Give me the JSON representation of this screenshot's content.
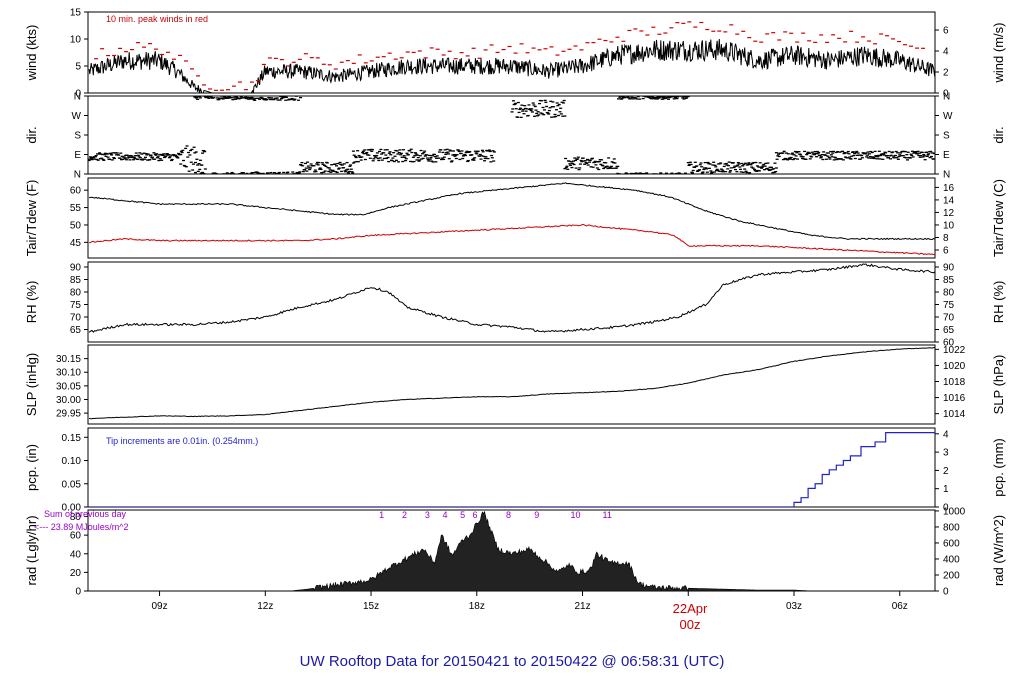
{
  "footer": {
    "title": "UW Rooftop Data for 20150421  to  20150422 @ 06:58:31  (UTC)"
  },
  "colors": {
    "red": "#cc0000",
    "blue": "#2222cc",
    "purple": "#9900cc",
    "black": "#000000",
    "title_blue": "#1a1aa6"
  },
  "x_axis": {
    "range_hours": [
      6.97,
      31.0
    ],
    "ticks": [
      {
        "hour": 9,
        "label": "09z"
      },
      {
        "hour": 12,
        "label": "12z"
      },
      {
        "hour": 15,
        "label": "15z"
      },
      {
        "hour": 18,
        "label": "18z"
      },
      {
        "hour": 21,
        "label": "21z"
      },
      {
        "hour": 27,
        "label": "03z"
      },
      {
        "hour": 30,
        "label": "06z"
      }
    ],
    "date_marker": {
      "hour": 24,
      "label1": "22Apr",
      "label2": "00z"
    }
  },
  "chart_data": [
    {
      "id": "wind",
      "type": "line",
      "ylabel_left": "wind (kts)",
      "ylabel_right": "wind (m/s)",
      "ylim": [
        0,
        15
      ],
      "left_ticks": [
        0,
        5,
        10,
        15
      ],
      "right_ticks": [
        {
          "value": 0,
          "label": "0"
        },
        {
          "value": 3.89,
          "label": "2"
        },
        {
          "value": 7.78,
          "label": "4"
        },
        {
          "value": 11.66,
          "label": "6"
        }
      ],
      "annotation": "10 min. peak winds in red",
      "series": [
        {
          "x": [
            7.0,
            8.0,
            9.0,
            9.5,
            10.0,
            10.5,
            11.0,
            11.6,
            12.0,
            13.0,
            14.0,
            15.0,
            16.0,
            17.0,
            18.0,
            19.0,
            20.0,
            21.0,
            22.0,
            23.0,
            24.0,
            25.0,
            26.0,
            27.0,
            28.0,
            29.0,
            30.0,
            31.0
          ],
          "values": [
            4,
            6,
            6,
            4,
            1,
            0,
            0,
            0,
            4,
            4,
            3,
            4,
            5,
            5,
            5,
            5,
            4,
            5,
            7,
            8,
            8,
            8,
            6,
            7,
            6,
            7,
            6,
            4
          ]
        },
        {
          "x": [
            7.0,
            8.0,
            9.0,
            9.5,
            10.0,
            10.5,
            11.0,
            11.6,
            12.0,
            13.0,
            14.0,
            15.0,
            16.0,
            17.0,
            18.0,
            19.0,
            20.0,
            21.0,
            22.0,
            23.0,
            24.0,
            25.0,
            26.0,
            27.0,
            28.0,
            29.0,
            30.0,
            31.0
          ],
          "values": [
            6,
            8,
            8,
            6,
            3,
            1,
            1,
            1,
            5,
            6,
            5,
            6,
            7,
            7,
            7,
            8,
            7,
            8,
            10,
            11,
            12,
            12,
            10,
            10,
            10,
            10,
            9,
            7
          ]
        }
      ]
    },
    {
      "id": "dir",
      "type": "scatter",
      "ylabel_left": "dir.",
      "ylabel_right": "dir.",
      "ylim": [
        0,
        360
      ],
      "ticks": [
        {
          "value": 0,
          "label": "N"
        },
        {
          "value": 90,
          "label": "E"
        },
        {
          "value": 180,
          "label": "S"
        },
        {
          "value": 270,
          "label": "W"
        },
        {
          "value": 360,
          "label": "N"
        }
      ],
      "segments": [
        {
          "x": [
            7.0,
            9.6
          ],
          "center": 80,
          "spread": 18
        },
        {
          "x": [
            9.6,
            10.3
          ],
          "center": 70,
          "spread": 60
        },
        {
          "x": [
            10.0,
            11.6
          ],
          "center": 355,
          "spread": 12
        },
        {
          "x": [
            11.6,
            13.0
          ],
          "center": 355,
          "spread": 15
        },
        {
          "x": [
            13.0,
            14.5
          ],
          "center": 30,
          "spread": 25
        },
        {
          "x": [
            14.5,
            18.5
          ],
          "center": 85,
          "spread": 30
        },
        {
          "x": [
            19.0,
            20.5
          ],
          "center": 300,
          "spread": 40
        },
        {
          "x": [
            20.5,
            22.0
          ],
          "center": 50,
          "spread": 30
        },
        {
          "x": [
            22.0,
            24.0
          ],
          "center": 355,
          "spread": 10
        },
        {
          "x": [
            24.0,
            26.5
          ],
          "center": 30,
          "spread": 25
        },
        {
          "x": [
            26.5,
            31.0
          ],
          "center": 85,
          "spread": 20
        }
      ]
    },
    {
      "id": "temp",
      "type": "line",
      "ylabel_left": "Tair/Tdew (F)",
      "ylabel_right": "Tair/Tdew (C)",
      "ylim": [
        40.5,
        63.5
      ],
      "left_ticks": [
        45,
        50,
        55,
        60
      ],
      "right_ticks": [
        {
          "value": 42.8,
          "label": "6"
        },
        {
          "value": 46.4,
          "label": "8"
        },
        {
          "value": 50.0,
          "label": "10"
        },
        {
          "value": 53.6,
          "label": "12"
        },
        {
          "value": 57.2,
          "label": "14"
        },
        {
          "value": 60.8,
          "label": "16"
        }
      ],
      "series": [
        {
          "name": "Tair",
          "x": [
            7.0,
            8.0,
            9.0,
            10.0,
            11.0,
            12.0,
            13.0,
            14.0,
            14.8,
            15.5,
            16.5,
            17.5,
            18.5,
            19.5,
            20.5,
            21.5,
            22.5,
            23.5,
            24.5,
            25.5,
            26.5,
            27.5,
            28.5,
            29.5,
            30.5,
            31.0
          ],
          "values": [
            58,
            57,
            56,
            56,
            56,
            55,
            54,
            53,
            53,
            55,
            57,
            59,
            60,
            61,
            62,
            61,
            60,
            58,
            54,
            51,
            49,
            47,
            46,
            46,
            46,
            46
          ]
        },
        {
          "name": "Tdew",
          "x": [
            7.0,
            8.0,
            9.0,
            10.0,
            11.0,
            12.0,
            13.0,
            14.0,
            15.0,
            16.0,
            17.0,
            18.0,
            19.0,
            20.0,
            21.0,
            22.0,
            23.0,
            23.6,
            24.0,
            25.0,
            26.0,
            27.0,
            28.0,
            29.0,
            30.0,
            31.0
          ],
          "values": [
            45,
            46,
            45.5,
            45.5,
            45.5,
            45.5,
            45.5,
            46,
            47,
            47.5,
            48,
            48.5,
            49,
            49.5,
            50,
            49,
            48,
            47,
            44,
            44,
            44,
            43.5,
            43,
            42.5,
            42,
            41.5
          ]
        }
      ]
    },
    {
      "id": "rh",
      "type": "line",
      "ylabel_left": "RH (%)",
      "ylabel_right": "RH (%)",
      "ylim": [
        60,
        92
      ],
      "left_ticks": [
        65,
        70,
        75,
        80,
        85,
        90
      ],
      "right_ticks": [
        {
          "value": 60,
          "label": "60"
        },
        {
          "value": 65,
          "label": "65"
        },
        {
          "value": 70,
          "label": "70"
        },
        {
          "value": 75,
          "label": "75"
        },
        {
          "value": 80,
          "label": "80"
        },
        {
          "value": 85,
          "label": "85"
        },
        {
          "value": 90,
          "label": "90"
        }
      ],
      "series": [
        {
          "x": [
            7.0,
            8.0,
            9.0,
            10.0,
            11.0,
            12.0,
            13.0,
            14.0,
            15.0,
            15.5,
            16.0,
            17.0,
            18.0,
            19.0,
            20.0,
            21.0,
            22.0,
            23.0,
            23.7,
            24.5,
            25.0,
            26.0,
            27.0,
            28.0,
            29.0,
            30.0,
            31.0
          ],
          "values": [
            64,
            67,
            67,
            67,
            68,
            70,
            74,
            77,
            82,
            80,
            74,
            70,
            67,
            66,
            64,
            65,
            66,
            68,
            70,
            75,
            83,
            87,
            88,
            89,
            91,
            89,
            88
          ]
        }
      ]
    },
    {
      "id": "slp",
      "type": "line",
      "ylabel_left": "SLP (inHg)",
      "ylabel_right": "SLP (hPa)",
      "ylim": [
        29.91,
        30.2
      ],
      "left_ticks": [
        29.95,
        30.0,
        30.05,
        30.1,
        30.15
      ],
      "right_ticks": [
        {
          "value": 29.948,
          "label": "1014"
        },
        {
          "value": 30.007,
          "label": "1016"
        },
        {
          "value": 30.066,
          "label": "1018"
        },
        {
          "value": 30.125,
          "label": "1020"
        },
        {
          "value": 30.184,
          "label": "1022"
        }
      ],
      "series": [
        {
          "x": [
            7.0,
            8.0,
            9.0,
            10.0,
            11.0,
            12.0,
            13.0,
            14.0,
            15.0,
            16.0,
            17.0,
            18.0,
            19.0,
            20.0,
            21.0,
            22.0,
            23.0,
            24.0,
            25.0,
            26.0,
            27.0,
            28.0,
            29.0,
            30.0,
            31.0
          ],
          "values": [
            29.93,
            29.935,
            29.94,
            29.938,
            29.94,
            29.945,
            29.96,
            29.975,
            29.99,
            30.0,
            30.005,
            30.01,
            30.01,
            30.02,
            30.025,
            30.03,
            30.04,
            30.06,
            30.09,
            30.11,
            30.14,
            30.16,
            30.175,
            30.185,
            30.19
          ]
        }
      ]
    },
    {
      "id": "pcp",
      "type": "line",
      "ylabel_left": "pcp. (in)",
      "ylabel_right": "pcp. (mm)",
      "ylim": [
        0,
        0.17
      ],
      "left_ticks": [
        0.0,
        0.05,
        0.1,
        0.15
      ],
      "right_ticks": [
        {
          "value": 0.0,
          "label": "0"
        },
        {
          "value": 0.0394,
          "label": "1"
        },
        {
          "value": 0.0787,
          "label": "2"
        },
        {
          "value": 0.1181,
          "label": "3"
        },
        {
          "value": 0.1575,
          "label": "4"
        }
      ],
      "annotation": "Tip increments are 0.01in. (0.254mm.)",
      "series": [
        {
          "x": [
            7.0,
            26.9,
            27.0,
            27.2,
            27.4,
            27.6,
            27.8,
            28.0,
            28.2,
            28.4,
            28.6,
            28.9,
            29.3,
            29.6,
            31.0
          ],
          "values": [
            0,
            0,
            0.01,
            0.02,
            0.04,
            0.05,
            0.07,
            0.08,
            0.09,
            0.1,
            0.11,
            0.13,
            0.14,
            0.16,
            0.16
          ]
        }
      ]
    },
    {
      "id": "rad",
      "type": "area",
      "ylabel_left": "rad (Lgly/hr)",
      "ylabel_right": "rad (W/m^2)",
      "ylim": [
        0,
        87
      ],
      "left_ticks": [
        0,
        20,
        40,
        60,
        80
      ],
      "right_ticks": [
        {
          "value": 0,
          "label": "0"
        },
        {
          "value": 17.2,
          "label": "200"
        },
        {
          "value": 34.4,
          "label": "400"
        },
        {
          "value": 51.6,
          "label": "600"
        },
        {
          "value": 68.8,
          "label": "800"
        },
        {
          "value": 86.0,
          "label": "1000"
        }
      ],
      "note_line1": "Sum of previous day",
      "note_line2": "<--- 23.89 MJoules/m^2",
      "hour_markers": [
        {
          "hour": 15.3,
          "label": "1"
        },
        {
          "hour": 15.95,
          "label": "2"
        },
        {
          "hour": 16.6,
          "label": "3"
        },
        {
          "hour": 17.1,
          "label": "4"
        },
        {
          "hour": 17.6,
          "label": "5"
        },
        {
          "hour": 17.95,
          "label": "6"
        },
        {
          "hour": 18.9,
          "label": "8"
        },
        {
          "hour": 19.7,
          "label": "9"
        },
        {
          "hour": 20.8,
          "label": "10"
        },
        {
          "hour": 21.7,
          "label": "11"
        }
      ],
      "series": [
        {
          "x": [
            12.7,
            13.2,
            13.7,
            14.3,
            15.0,
            15.5,
            16.0,
            16.5,
            16.8,
            17.0,
            17.3,
            17.6,
            17.8,
            18.0,
            18.2,
            18.6,
            19.0,
            19.5,
            20.0,
            20.3,
            20.6,
            20.9,
            21.2,
            21.4,
            21.8,
            22.3,
            22.6,
            23.0,
            24.0,
            25.0,
            26.0,
            27.0,
            27.5
          ],
          "values": [
            0,
            2,
            5,
            8,
            12,
            25,
            35,
            45,
            30,
            60,
            38,
            55,
            60,
            72,
            85,
            45,
            40,
            45,
            30,
            20,
            28,
            20,
            22,
            40,
            30,
            30,
            8,
            4,
            3,
            2,
            1,
            1,
            0
          ]
        }
      ]
    }
  ]
}
